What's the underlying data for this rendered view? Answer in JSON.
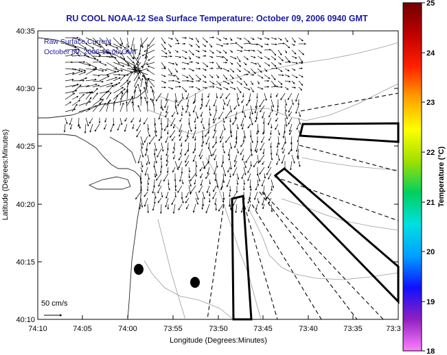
{
  "title": "RU COOL  NOAA-12  Sea Surface Temperature:  October 09, 2006 0940 GMT",
  "annotation": {
    "line1": "Raw Surface Current",
    "line2": "October 09, 2006 10:00 GMT"
  },
  "scale_label": "50 cm/s",
  "x_axis": {
    "label": "Longitude (Degrees:Minutes)",
    "ticks": [
      "74:10",
      "74:05",
      "74:00",
      "73:55",
      "73:50",
      "73:45",
      "73:40",
      "73:35",
      "73:3"
    ]
  },
  "y_axis": {
    "label": "Latitude (Degrees:Minutes)",
    "ticks": [
      "40:35",
      "40:30",
      "40:25",
      "40:20",
      "40:15",
      "40:10"
    ]
  },
  "colorbar": {
    "label": "Temperature (°C)",
    "ticks": [
      "25",
      "24",
      "23",
      "22",
      "21",
      "20",
      "19",
      "18"
    ],
    "colors": [
      "#ff80ff",
      "#9020c0",
      "#1010ff",
      "#00a0ff",
      "#00e0e0",
      "#00d060",
      "#a0e000",
      "#ffff00",
      "#ffa000",
      "#ff2000",
      "#c00000",
      "#700000"
    ]
  },
  "colors": {
    "title": "#1a1aa0",
    "annotation": "#1a1aa0",
    "frame": "#000000",
    "contour": "#9a9a9a"
  }
}
